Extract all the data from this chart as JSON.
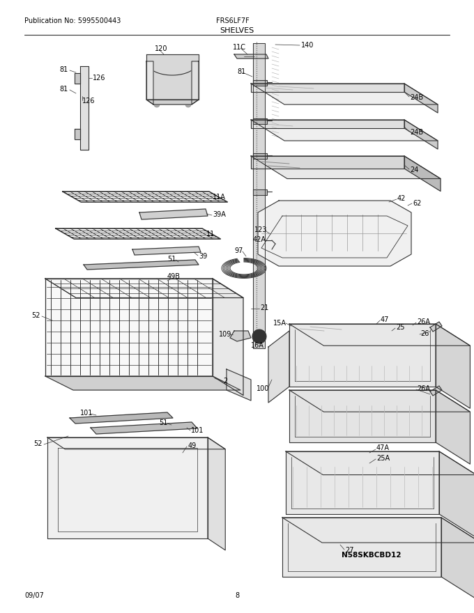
{
  "title": "SHELVES",
  "pub_no": "Publication No: 5995500443",
  "model": "FRS6LF7F",
  "date": "09/07",
  "page": "8",
  "diagram_id": "N58SKBCBD12",
  "bg_color": "#ffffff",
  "line_color": "#333333",
  "text_color": "#000000",
  "figsize": [
    6.8,
    8.8
  ],
  "dpi": 100
}
